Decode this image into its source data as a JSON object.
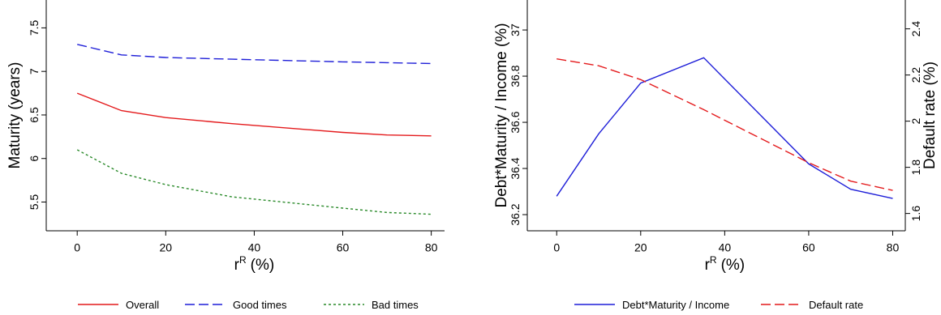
{
  "chart_data": [
    {
      "type": "line",
      "xlabel": "r",
      "xlabel_sup": "R",
      "xlabel_unit": "(%)",
      "ylabel": "Maturity (years)",
      "xlim": [
        -7,
        83
      ],
      "ylim": [
        5.17,
        7.82
      ],
      "xticks": [
        "0",
        "20",
        "40",
        "60",
        "80"
      ],
      "yticks": [
        "5.5",
        "6",
        "6.5",
        "7",
        "7.5"
      ],
      "x": [
        0,
        10,
        20,
        35,
        60,
        70,
        80
      ],
      "series": [
        {
          "name": "Overall",
          "color": "#e41a1c",
          "dash": "solid",
          "values": [
            6.75,
            6.55,
            6.47,
            6.4,
            6.3,
            6.27,
            6.26
          ]
        },
        {
          "name": "Good times",
          "color": "#1f1fd8",
          "dash": "dashed",
          "values": [
            7.31,
            7.19,
            7.16,
            7.14,
            7.11,
            7.1,
            7.09
          ]
        },
        {
          "name": "Bad times",
          "color": "#2a8a2a",
          "dash": "dotted",
          "values": [
            6.1,
            5.83,
            5.7,
            5.56,
            5.43,
            5.38,
            5.36
          ]
        }
      ],
      "legend": "bottom"
    },
    {
      "type": "line",
      "xlabel": "r",
      "xlabel_sup": "R",
      "xlabel_unit": "(%)",
      "ylabel": "Debt*Maturity / Income (%)",
      "ylabel_right": "Default rate (%)",
      "xlim": [
        -7,
        83
      ],
      "ylim": [
        36.13,
        37.13
      ],
      "ylim_right": [
        1.525,
        2.525
      ],
      "xticks": [
        "0",
        "20",
        "40",
        "60",
        "80"
      ],
      "yticks": [
        "36.2",
        "36.4",
        "36.6",
        "36.8",
        "37"
      ],
      "yticks_right": [
        "1.6",
        "1.8",
        "2",
        "2.2",
        "2.4"
      ],
      "x": [
        0,
        10,
        20,
        35,
        60,
        70,
        80
      ],
      "series": [
        {
          "name": "Debt*Maturity / Income",
          "axis": "left",
          "color": "#1f1fd8",
          "dash": "solid",
          "values": [
            36.28,
            36.55,
            36.77,
            36.88,
            36.42,
            36.31,
            36.27
          ]
        },
        {
          "name": "Default rate",
          "axis": "right",
          "color": "#e41a1c",
          "dash": "dashed",
          "values": [
            2.27,
            2.24,
            2.18,
            2.05,
            1.82,
            1.74,
            1.7
          ]
        }
      ],
      "legend": "bottom"
    }
  ]
}
